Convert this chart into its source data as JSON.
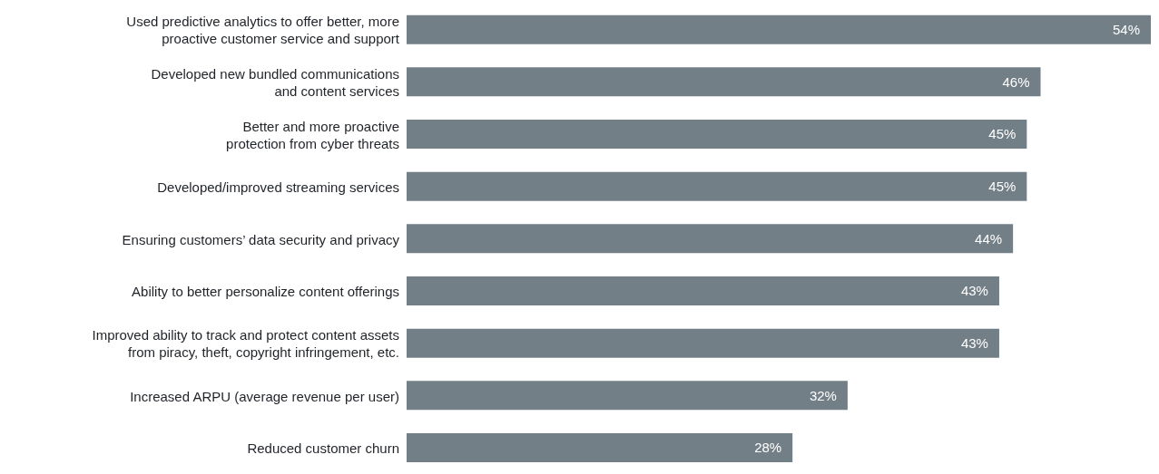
{
  "chart_data": {
    "type": "bar",
    "orientation": "horizontal",
    "categories": [
      "Used predictive analytics to offer better, more\nproactive customer service and support",
      "Developed new bundled communications\nand content services",
      "Better and more proactive\nprotection from cyber threats",
      "Developed/improved streaming services",
      "Ensuring customers’ data security and privacy",
      "Ability to better personalize content offerings",
      "Improved ability to track and protect content assets\nfrom piracy, theft, copyright infringement, etc.",
      "Increased ARPU (average revenue per user)",
      "Reduced customer churn"
    ],
    "values": [
      54,
      46,
      45,
      45,
      44,
      43,
      43,
      32,
      28
    ],
    "value_labels": [
      "54%",
      "46%",
      "45%",
      "45%",
      "44%",
      "43%",
      "43%",
      "32%",
      "28%"
    ],
    "color": "#737f87",
    "xlim": [
      0,
      54
    ],
    "tick_labels": "y"
  }
}
